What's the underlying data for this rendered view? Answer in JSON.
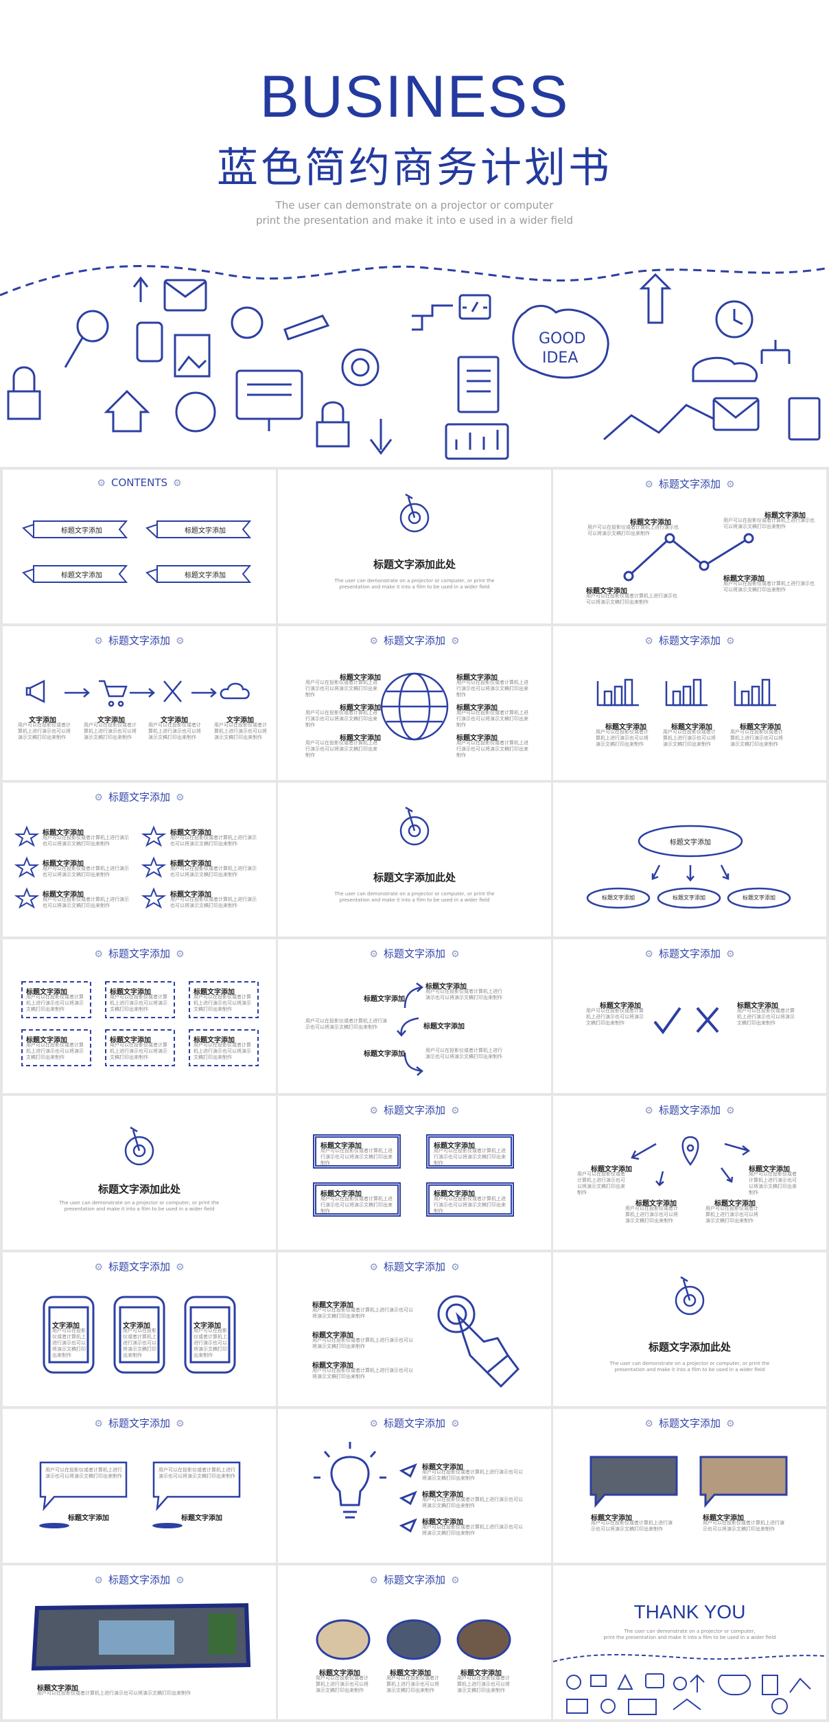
{
  "cover": {
    "title": "BUSINESS",
    "subtitle": "蓝色简约商务计划书",
    "desc_line1": "The user can demonstrate on a projector or computer",
    "desc_line2": "print the presentation and make it into e used in a wider field",
    "good_idea_1": "GOOD",
    "good_idea_2": "IDEA"
  },
  "common": {
    "section_header": "标题文字添加",
    "contents_header": "CONTENTS",
    "gear": "⚙",
    "item_title": "标题文字添加",
    "item_text": "用户可以在投影仪或者计算机上进行演示也可以将演示文稿打印出来制作",
    "text_title": "文字添加",
    "divider_title": "标题文字添加此处",
    "divider_desc_1": "The user can demonstrate on a projector or computer, or print the",
    "divider_desc_2": "presentation and make it into a film to be used in a wider field"
  },
  "contents_items": [
    "标题文字添加",
    "标题文字添加",
    "标题文字添加",
    "标题文字添加"
  ],
  "ending": {
    "thank_you": "THANK YOU",
    "desc_1": "The user can demonstrate on a projector or computer,",
    "desc_2": "print the presentation and make it into a film to be used in a wider field"
  },
  "colors": {
    "accent": "#233a9e",
    "line": "#2c3fa3",
    "muted": "#9a9a9a"
  }
}
